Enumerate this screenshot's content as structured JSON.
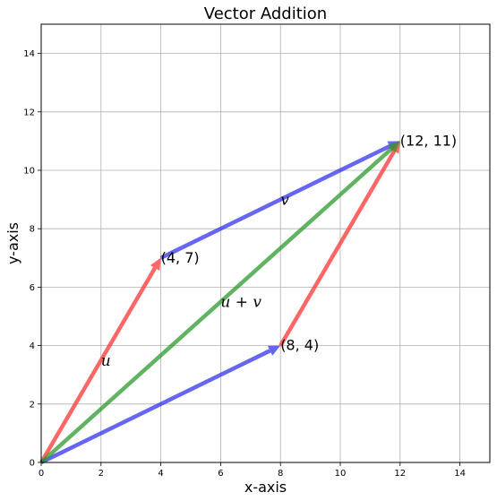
{
  "chart_data": {
    "type": "line",
    "title": "Vector Addition",
    "xlabel": "x-axis",
    "ylabel": "y-axis",
    "xlim": [
      0,
      15
    ],
    "ylim": [
      0,
      15
    ],
    "xticks": [
      0,
      2,
      4,
      6,
      8,
      10,
      12,
      14
    ],
    "yticks": [
      0,
      2,
      4,
      6,
      8,
      10,
      12,
      14
    ],
    "grid": true,
    "vectors": [
      {
        "id": "u-from-origin",
        "from": [
          0,
          0
        ],
        "to": [
          4,
          7
        ],
        "color": "#ff3333"
      },
      {
        "id": "v-from-origin",
        "from": [
          0,
          0
        ],
        "to": [
          8,
          4
        ],
        "color": "#3333ee"
      },
      {
        "id": "v-from-u",
        "from": [
          4,
          7
        ],
        "to": [
          12,
          11
        ],
        "color": "#3333ee"
      },
      {
        "id": "u-from-v",
        "from": [
          8,
          4
        ],
        "to": [
          12,
          11
        ],
        "color": "#ff3333"
      },
      {
        "id": "u-plus-v",
        "from": [
          0,
          0
        ],
        "to": [
          12,
          11
        ],
        "color": "#2b9a2b"
      }
    ],
    "point_labels": [
      {
        "text": "(4, 7)",
        "x": 4,
        "y": 7
      },
      {
        "text": "(8, 4)",
        "x": 8,
        "y": 4
      },
      {
        "text": "(12, 11)",
        "x": 12,
        "y": 11
      }
    ],
    "vector_labels": [
      {
        "text": "u",
        "x": 2,
        "y": 3.5
      },
      {
        "text": "v",
        "x": 8,
        "y": 9
      },
      {
        "text": "u + v",
        "x": 6,
        "y": 5.5
      }
    ]
  }
}
